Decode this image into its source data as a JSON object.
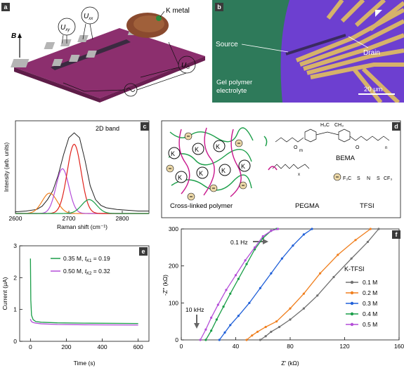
{
  "panels": {
    "a": {
      "tag": "a",
      "B_label": "B",
      "Uxy": "U",
      "Uxy_sub": "xy",
      "Uxx": "U",
      "Uxx_sub": "xx",
      "UG": "U",
      "UG_sub": "G",
      "k_metal": "K metal"
    },
    "b": {
      "tag": "b",
      "source": "Source",
      "drain": "Drain",
      "electrolyte_line1": "Gel polymer",
      "electrolyte_line2": "electrolyte",
      "scale": "20 μm"
    },
    "c": {
      "tag": "c",
      "title": "2D band"
    },
    "d": {
      "tag": "d",
      "bema": "BEMA",
      "pegma": "PEGMA",
      "tfsi": "TFSI",
      "crosslinked": "Cross-linked polymer",
      "k_ion": "K",
      "f3c": "F₃C",
      "cf3": "CF₃",
      "S": "S",
      "N": "N",
      "O": "O",
      "m": "m",
      "n": "n",
      "x": "x",
      "H3C": "H₃C",
      "CH3": "CH₃"
    },
    "e": {
      "tag": "e"
    },
    "f": {
      "tag": "f",
      "freq_low": "0.1 Hz",
      "freq_high": "10 kHz",
      "legend_title": "K-TFSI"
    }
  },
  "colors": {
    "green": "#1a9e48",
    "purple": "#b44dd8",
    "red": "#e0231c",
    "orange": "#f07f1e",
    "blue": "#2060d8",
    "gray": "#707070",
    "magenta": "#c8168c",
    "black": "#222222"
  },
  "chart_data": [
    {
      "panel": "c",
      "type": "line",
      "xlabel": "Raman shift (cm⁻¹)",
      "ylabel": "Intensity (arb. units)",
      "xticks": [
        "2600",
        "2700",
        "2800"
      ],
      "xlim": [
        2600,
        2850
      ],
      "series": [
        {
          "kind": "data",
          "x": [
            2600,
            2620,
            2640,
            2650,
            2660,
            2670,
            2680,
            2690,
            2700,
            2710,
            2720,
            2730,
            2740,
            2750,
            2760,
            2770,
            2790,
            2810,
            2830,
            2850
          ],
          "y": [
            0.02,
            0.03,
            0.05,
            0.09,
            0.17,
            0.28,
            0.47,
            0.72,
            0.93,
            0.99,
            0.93,
            0.66,
            0.34,
            0.17,
            0.1,
            0.07,
            0.05,
            0.04,
            0.03,
            0.03
          ]
        },
        {
          "kind": "peak",
          "center": 2664,
          "height": 0.25,
          "width": 14
        },
        {
          "kind": "peak",
          "center": 2688,
          "height": 0.55,
          "width": 12
        },
        {
          "kind": "peak",
          "center": 2710,
          "height": 0.85,
          "width": 13
        },
        {
          "kind": "peak",
          "center": 2738,
          "height": 0.17,
          "width": 14
        }
      ]
    },
    {
      "panel": "e",
      "type": "line",
      "xlabel": "Time (s)",
      "ylabel": "Current (μA)",
      "xticks": [
        "0",
        "200",
        "400",
        "600"
      ],
      "yticks": [
        "0",
        "1",
        "2",
        "3"
      ],
      "xlim": [
        -60,
        660
      ],
      "ylim": [
        0,
        3
      ],
      "series": [
        {
          "name": "0.35 M, ",
          "t": "t",
          "tsub": "K1",
          "tval": " = 0.19",
          "x": [
            0,
            2,
            6,
            15,
            30,
            60,
            150,
            300,
            600
          ],
          "y": [
            2.6,
            1.3,
            0.82,
            0.68,
            0.62,
            0.6,
            0.58,
            0.57,
            0.56
          ]
        },
        {
          "name": "0.50 M, ",
          "t": "t",
          "tsub": "K2",
          "tval": " = 0.32",
          "x": [
            0,
            2,
            6,
            15,
            30,
            60,
            150,
            300,
            600
          ],
          "y": [
            0.7,
            0.66,
            0.62,
            0.59,
            0.57,
            0.55,
            0.53,
            0.52,
            0.51
          ]
        }
      ]
    },
    {
      "panel": "f",
      "type": "scatter",
      "xlabel": "Z' (kΩ)",
      "ylabel": "-Z'' (kΩ)",
      "xticks": [
        "0",
        "40",
        "80",
        "120",
        "160"
      ],
      "yticks": [
        "0",
        "100",
        "200",
        "300"
      ],
      "xlim": [
        0,
        160
      ],
      "ylim": [
        0,
        300
      ],
      "series": [
        {
          "name": "0.1 M",
          "x": [
            58,
            62,
            66,
            72,
            80,
            90,
            100,
            112,
            125,
            137,
            145
          ],
          "y": [
            0,
            10,
            22,
            35,
            55,
            85,
            120,
            170,
            220,
            265,
            300
          ]
        },
        {
          "name": "0.2 M",
          "x": [
            48,
            52,
            56,
            62,
            70,
            80,
            90,
            102,
            115,
            128,
            139
          ],
          "y": [
            0,
            12,
            22,
            35,
            50,
            85,
            125,
            180,
            230,
            270,
            300
          ]
        },
        {
          "name": "0.3 M",
          "x": [
            28,
            32,
            36,
            42,
            50,
            58,
            66,
            74,
            82,
            90,
            96
          ],
          "y": [
            0,
            20,
            40,
            65,
            100,
            140,
            180,
            220,
            255,
            285,
            300
          ]
        },
        {
          "name": "0.4 M",
          "x": [
            18,
            22,
            26,
            31,
            36,
            42,
            48,
            54,
            60,
            66,
            70
          ],
          "y": [
            0,
            25,
            55,
            90,
            125,
            165,
            205,
            245,
            275,
            295,
            300
          ]
        },
        {
          "name": "0.5 M",
          "x": [
            14,
            18,
            22,
            27,
            33,
            40,
            47,
            54,
            60,
            66,
            71
          ],
          "y": [
            0,
            28,
            60,
            95,
            135,
            175,
            215,
            250,
            280,
            295,
            300
          ]
        }
      ]
    }
  ]
}
